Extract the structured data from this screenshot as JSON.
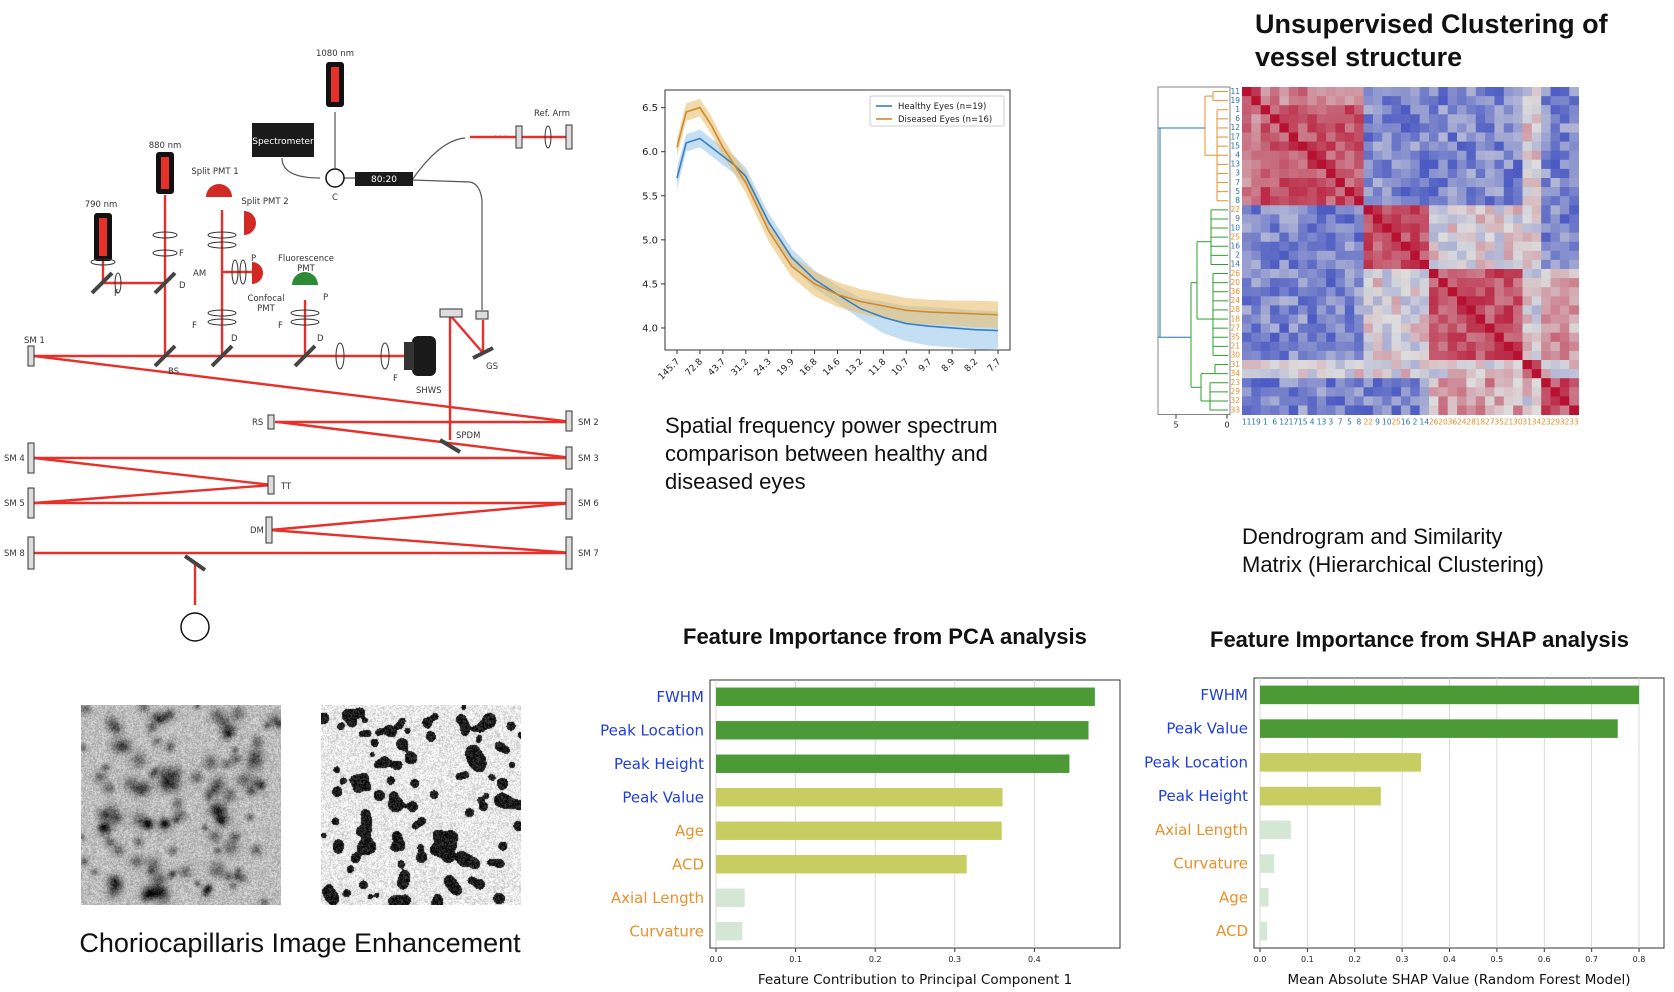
{
  "optics": {
    "labels": {
      "nm1080": "1080 nm",
      "spectrometer": "Spectrometer",
      "refarm": "Ref. Arm",
      "split8020": "80:20",
      "c": "C",
      "nm880": "880 nm",
      "pmt1": "Split PMT 1",
      "pmt2": "Split PMT 2",
      "nm790": "790 nm",
      "f": "F",
      "d": "D",
      "am": "AM",
      "p": "P",
      "confocal1": "Confocal",
      "confocal2": "PMT",
      "fluor1": "Fluorescence",
      "fluor2": "PMT",
      "sm1": "SM 1",
      "bs": "BS",
      "shws": "SHWS",
      "gs": "GS",
      "rs": "RS",
      "sm2": "SM 2",
      "spdm": "SPDM",
      "sm3": "SM 3",
      "sm4": "SM 4",
      "tt": "TT",
      "sm5": "SM 5",
      "sm6": "SM 6",
      "dm": "DM",
      "sm8": "SM 8",
      "sm7": "SM 7",
      "dots": "•••"
    }
  },
  "captions": {
    "spectrum": [
      "Spatial frequency power spectrum",
      "comparison between healthy and",
      "diseased eyes"
    ],
    "dendro": [
      "Dendrogram and Similarity",
      "Matrix (Hierarchical Clustering)"
    ],
    "chorio": "Choriocapillaris Image Enhancement"
  },
  "titles": {
    "cluster": [
      "Unsupervised Clustering of",
      "vessel structure"
    ],
    "pca": "Feature Importance from PCA analysis",
    "shap": "Feature Importance from SHAP analysis"
  },
  "colors": {
    "red": "#e8302a",
    "blue_line": "#3a7fc1",
    "blue_fill": "#9cc8ec",
    "orange_line": "#d08a2e",
    "orange_fill": "#e8c070",
    "green_bar": "#4b9a35",
    "olive_bar": "#c8cd62",
    "pale_bar": "#d4e6d4",
    "label_blue": "#1f3fd6",
    "label_orange": "#e8902a",
    "heat_red": "#b40426",
    "heat_blue": "#3b4cc0"
  },
  "chart_data": [
    {
      "id": "spectrum",
      "type": "line",
      "title": "",
      "xlabel": "",
      "ylabel": "",
      "categories": [
        "145.7",
        "72.8",
        "43.7",
        "31.2",
        "24.3",
        "19.9",
        "16.8",
        "14.6",
        "13.2",
        "11.8",
        "10.7",
        "9.7",
        "8.9",
        "8.2",
        "7.7"
      ],
      "ylim": [
        3.75,
        6.7
      ],
      "yticks": [
        "4.0",
        "4.5",
        "5.0",
        "5.5",
        "6.0",
        "6.5"
      ],
      "grid": false,
      "legend_position": "top-right",
      "series": [
        {
          "name": "Healthy Eyes (n=19)",
          "x": [
            0,
            0.4,
            1,
            1.5,
            2,
            2.5,
            3,
            4,
            5,
            6,
            7,
            8,
            9,
            10,
            11,
            12,
            13,
            14
          ],
          "y": [
            5.7,
            6.1,
            6.15,
            6.05,
            5.95,
            5.85,
            5.72,
            5.2,
            4.8,
            4.55,
            4.38,
            4.22,
            4.12,
            4.05,
            4.02,
            4.0,
            3.98,
            3.97
          ],
          "band": [
            0.12,
            0.1,
            0.1,
            0.1,
            0.1,
            0.1,
            0.1,
            0.1,
            0.1,
            0.1,
            0.1,
            0.12,
            0.18,
            0.2,
            0.22,
            0.22,
            0.22,
            0.22
          ]
        },
        {
          "name": "Diseased Eyes (n=16)",
          "x": [
            0,
            0.4,
            1,
            1.5,
            2,
            2.5,
            3,
            4,
            5,
            6,
            7,
            8,
            9,
            10,
            11,
            12,
            13,
            14
          ],
          "y": [
            6.05,
            6.45,
            6.5,
            6.3,
            6.05,
            5.85,
            5.65,
            5.1,
            4.7,
            4.5,
            4.38,
            4.3,
            4.25,
            4.2,
            4.18,
            4.17,
            4.16,
            4.15
          ],
          "band": [
            0.1,
            0.1,
            0.1,
            0.1,
            0.1,
            0.1,
            0.12,
            0.12,
            0.12,
            0.14,
            0.14,
            0.14,
            0.14,
            0.14,
            0.14,
            0.14,
            0.15,
            0.15
          ]
        }
      ]
    },
    {
      "id": "heatmap",
      "type": "heatmap",
      "title": "",
      "order": [
        "11",
        "19",
        "1",
        "6",
        "12",
        "17",
        "15",
        "4",
        "13",
        "3",
        "7",
        "5",
        "8",
        "22",
        "9",
        "10",
        "25",
        "16",
        "2",
        "14",
        "26",
        "20",
        "36",
        "24",
        "28",
        "18",
        "27",
        "35",
        "21",
        "30",
        "31",
        "34",
        "23",
        "29",
        "32",
        "33"
      ],
      "row_label_colors": [
        "blue",
        "blue",
        "blue",
        "blue",
        "blue",
        "blue",
        "blue",
        "blue",
        "blue",
        "blue",
        "blue",
        "blue",
        "blue",
        "orange",
        "blue",
        "blue",
        "orange",
        "blue",
        "blue",
        "blue",
        "orange",
        "orange",
        "orange",
        "orange",
        "orange",
        "orange",
        "orange",
        "orange",
        "orange",
        "orange",
        "orange",
        "orange",
        "orange",
        "orange",
        "orange",
        "orange"
      ],
      "groups": [
        [
          0,
          2
        ],
        [
          2,
          13
        ],
        [
          13,
          20
        ],
        [
          20,
          30
        ],
        [
          30,
          32
        ],
        [
          32,
          36
        ]
      ],
      "dendro_axis_ticks": [
        "5",
        "0"
      ]
    },
    {
      "id": "pca",
      "type": "bar",
      "orientation": "horizontal",
      "title": "Feature Importance from PCA analysis",
      "xlabel": "Feature Contribution to Principal Component 1",
      "ylabel": "",
      "categories": [
        "FWHM",
        "Peak Location",
        "Peak Height",
        "Peak Value",
        "Age",
        "ACD",
        "Axial Length",
        "Curvature"
      ],
      "label_colors": [
        "blue",
        "blue",
        "blue",
        "blue",
        "orange",
        "orange",
        "orange",
        "orange"
      ],
      "values": [
        0.476,
        0.468,
        0.444,
        0.36,
        0.359,
        0.315,
        0.036,
        0.033
      ],
      "bar_colors": [
        "green",
        "green",
        "green",
        "olive",
        "olive",
        "olive",
        "pale",
        "pale"
      ],
      "xlim": [
        0,
        0.5
      ],
      "xticks": [
        "0.0",
        "0.1",
        "0.2",
        "0.3",
        "0.4"
      ],
      "grid": true
    },
    {
      "id": "shap",
      "type": "bar",
      "orientation": "horizontal",
      "title": "Feature Importance from SHAP analysis",
      "xlabel": "Mean Absolute SHAP Value (Random Forest Model)",
      "ylabel": "",
      "categories": [
        "FWHM",
        "Peak Value",
        "Peak Location",
        "Peak Height",
        "Axial Length",
        "Curvature",
        "Age",
        "ACD"
      ],
      "label_colors": [
        "blue",
        "blue",
        "blue",
        "blue",
        "orange",
        "orange",
        "orange",
        "orange"
      ],
      "values": [
        0.8,
        0.755,
        0.34,
        0.255,
        0.065,
        0.03,
        0.018,
        0.015
      ],
      "bar_colors": [
        "green",
        "green",
        "olive",
        "olive",
        "pale",
        "pale",
        "pale",
        "pale"
      ],
      "xlim": [
        0,
        0.84
      ],
      "xticks": [
        "0.0",
        "0.1",
        "0.2",
        "0.3",
        "0.4",
        "0.5",
        "0.6",
        "0.7",
        "0.8"
      ],
      "grid": true
    }
  ]
}
